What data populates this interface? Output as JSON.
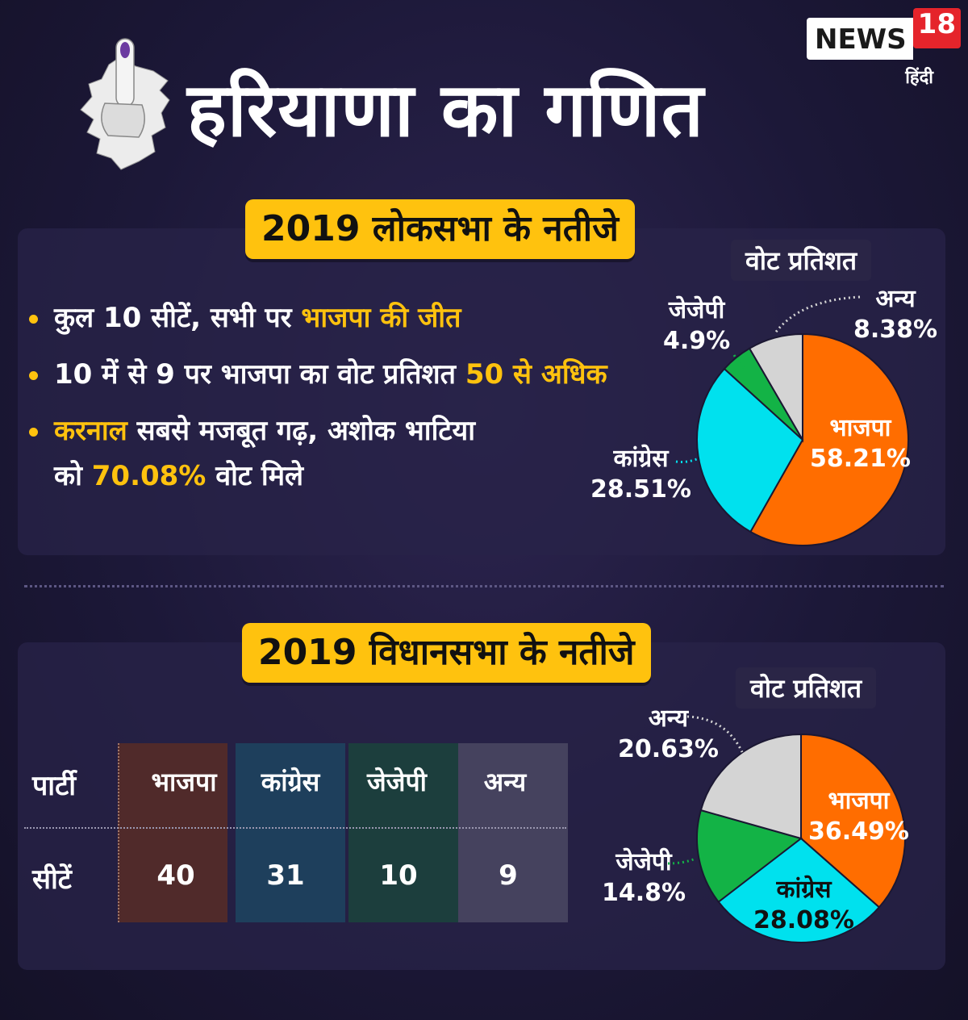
{
  "title": "हरियाणा का गणित",
  "logo": {
    "name": "NEWS",
    "number": "18",
    "sub": "हिंदी"
  },
  "colors": {
    "bjp": "#ff6d00",
    "congress": "#00e1ee",
    "jjp": "#13b346",
    "others": "#d4d4d4",
    "accent": "#ffc20e"
  },
  "loksabha": {
    "heading": "2019 लोकसभा के नतीजे",
    "vote_label": "वोट प्रतिशत",
    "bullets": [
      {
        "pre": "कुल 10 सीटें, सभी पर ",
        "hl": "भाजपा की जीत",
        "post": ""
      },
      {
        "pre": "10 में से 9 पर भाजपा का वोट प्रतिशत ",
        "hl": "50 से अधिक",
        "post": ""
      },
      {
        "hl1": "करनाल",
        "mid": " सबसे मजबूत गढ़, अशोक भाटिया",
        "line2_pre": "को ",
        "hl2": "70.08%",
        "line2_post": " वोट मिले"
      }
    ]
  },
  "vidhansabha": {
    "heading": "2019 विधानसभा के नतीजे",
    "vote_label": "वोट प्रतिशत",
    "table": {
      "row_labels": [
        "पार्टी",
        "सीटें"
      ],
      "parties": [
        "भाजपा",
        "कांग्रेस",
        "जेजेपी",
        "अन्य"
      ],
      "seats": [
        "40",
        "31",
        "10",
        "9"
      ]
    }
  },
  "chart_data": [
    {
      "type": "pie",
      "title": "वोट प्रतिशत",
      "categories": [
        "भाजपा",
        "कांग्रेस",
        "जेजेपी",
        "अन्य"
      ],
      "values": [
        58.21,
        28.51,
        4.9,
        8.38
      ],
      "labels": [
        "58.21%",
        "28.51%",
        "4.9%",
        "8.38%"
      ]
    },
    {
      "type": "pie",
      "title": "वोट प्रतिशत",
      "categories": [
        "भाजपा",
        "कांग्रेस",
        "जेजेपी",
        "अन्य"
      ],
      "values": [
        36.49,
        28.08,
        14.8,
        20.63
      ],
      "labels": [
        "36.49%",
        "28.08%",
        "14.8%",
        "20.63%"
      ]
    }
  ]
}
